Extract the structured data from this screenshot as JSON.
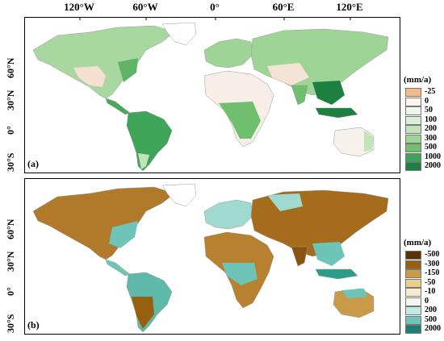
{
  "longitude_labels": [
    "120°W",
    "60°W",
    "0°",
    "60°E",
    "120°E"
  ],
  "latitude_labels": [
    "60°N",
    "30°N",
    "0°",
    "30°S"
  ],
  "panels": [
    {
      "tag": "(a)",
      "legend": {
        "title": "(mm/a)",
        "items": [
          {
            "label": "-25",
            "color": "#f6b98d"
          },
          {
            "label": "0",
            "color": "#fbf4ef"
          },
          {
            "label": "50",
            "color": "#eef6ea"
          },
          {
            "label": "100",
            "color": "#dcefd6"
          },
          {
            "label": "200",
            "color": "#c2e4bb"
          },
          {
            "label": "300",
            "color": "#9ed597"
          },
          {
            "label": "500",
            "color": "#6fbf6e"
          },
          {
            "label": "1000",
            "color": "#3ea558"
          },
          {
            "label": "2000",
            "color": "#1b8040"
          }
        ]
      }
    },
    {
      "tag": "(b)",
      "legend": {
        "title": "(mm/a)",
        "items": [
          {
            "label": "-500",
            "color": "#5b3209"
          },
          {
            "label": "-300",
            "color": "#97600f"
          },
          {
            "label": "-150",
            "color": "#c99a47"
          },
          {
            "label": "-50",
            "color": "#e9cf8f"
          },
          {
            "label": "-10",
            "color": "#f5ead0"
          },
          {
            "label": "0",
            "color": "#f1f4f2"
          },
          {
            "label": "200",
            "color": "#c1e8e2"
          },
          {
            "label": "500",
            "color": "#6ec4b7"
          },
          {
            "label": "2000",
            "color": "#1d7f72"
          }
        ]
      }
    }
  ]
}
